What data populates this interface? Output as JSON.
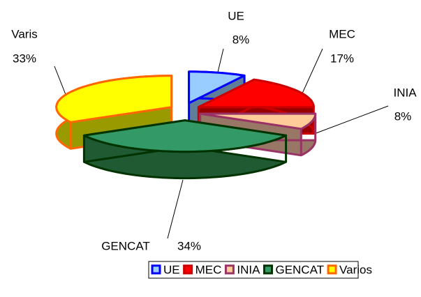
{
  "chart_data": {
    "type": "pie3d",
    "categories": [
      "UE",
      "MEC",
      "INIA",
      "GENCAT",
      "Varis"
    ],
    "values": [
      8,
      17,
      8,
      34,
      33
    ],
    "value_labels": [
      "8%",
      "17%",
      "8%",
      "34%",
      "33%"
    ],
    "legend": [
      "UE",
      "MEC",
      "INIA",
      "GENCAT",
      "Varios"
    ],
    "colors": [
      "#99ccff",
      "#ff0000",
      "#ffcc99",
      "#339966",
      "#ffff00"
    ],
    "side_colors": [
      "#5f7f99",
      "#990000",
      "#997766",
      "#1f5a33",
      "#999900"
    ],
    "edge_colors": [
      "#0000ff",
      "#cc0000",
      "#993366",
      "#003300",
      "#ff6600"
    ]
  }
}
